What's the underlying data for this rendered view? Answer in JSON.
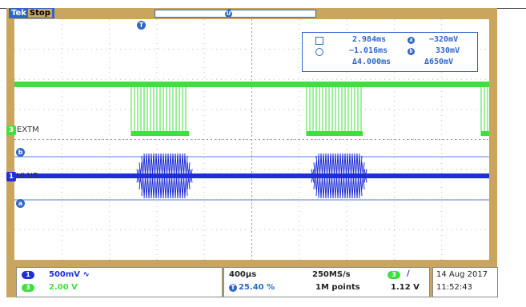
{
  "header": {
    "brand": "Tek",
    "run_state": "Stop"
  },
  "markers": {
    "trigger_position": "T",
    "horizontal_marker": "U"
  },
  "cursors": {
    "a_time": "2.984ms",
    "b_time": "−1.016ms",
    "delta_time": "Δ4.000ms",
    "a_volt": "−320mV",
    "b_volt": "330mV",
    "delta_volt": "Δ650mV",
    "a_tag": "a",
    "b_tag": "b"
  },
  "channels": [
    {
      "number": "1",
      "name": "VLNB",
      "color": "#1f2fd6"
    },
    {
      "number": "3",
      "name": "EXTM",
      "color": "#3ee03e"
    }
  ],
  "status": {
    "ch1_scale": "500mV",
    "ch1_coupling": "∿",
    "ch3_scale": "2.00 V",
    "timebase": "400µs",
    "trigger_position_percent": "25.40 %",
    "trigger_position_tag": "T",
    "sample_rate": "250MS/s",
    "record_length": "1M points",
    "trigger_source": "3",
    "trigger_slope": "∕",
    "trigger_level": "1.12 V",
    "date": "14 Aug 2017",
    "time": "11:52:43"
  }
}
